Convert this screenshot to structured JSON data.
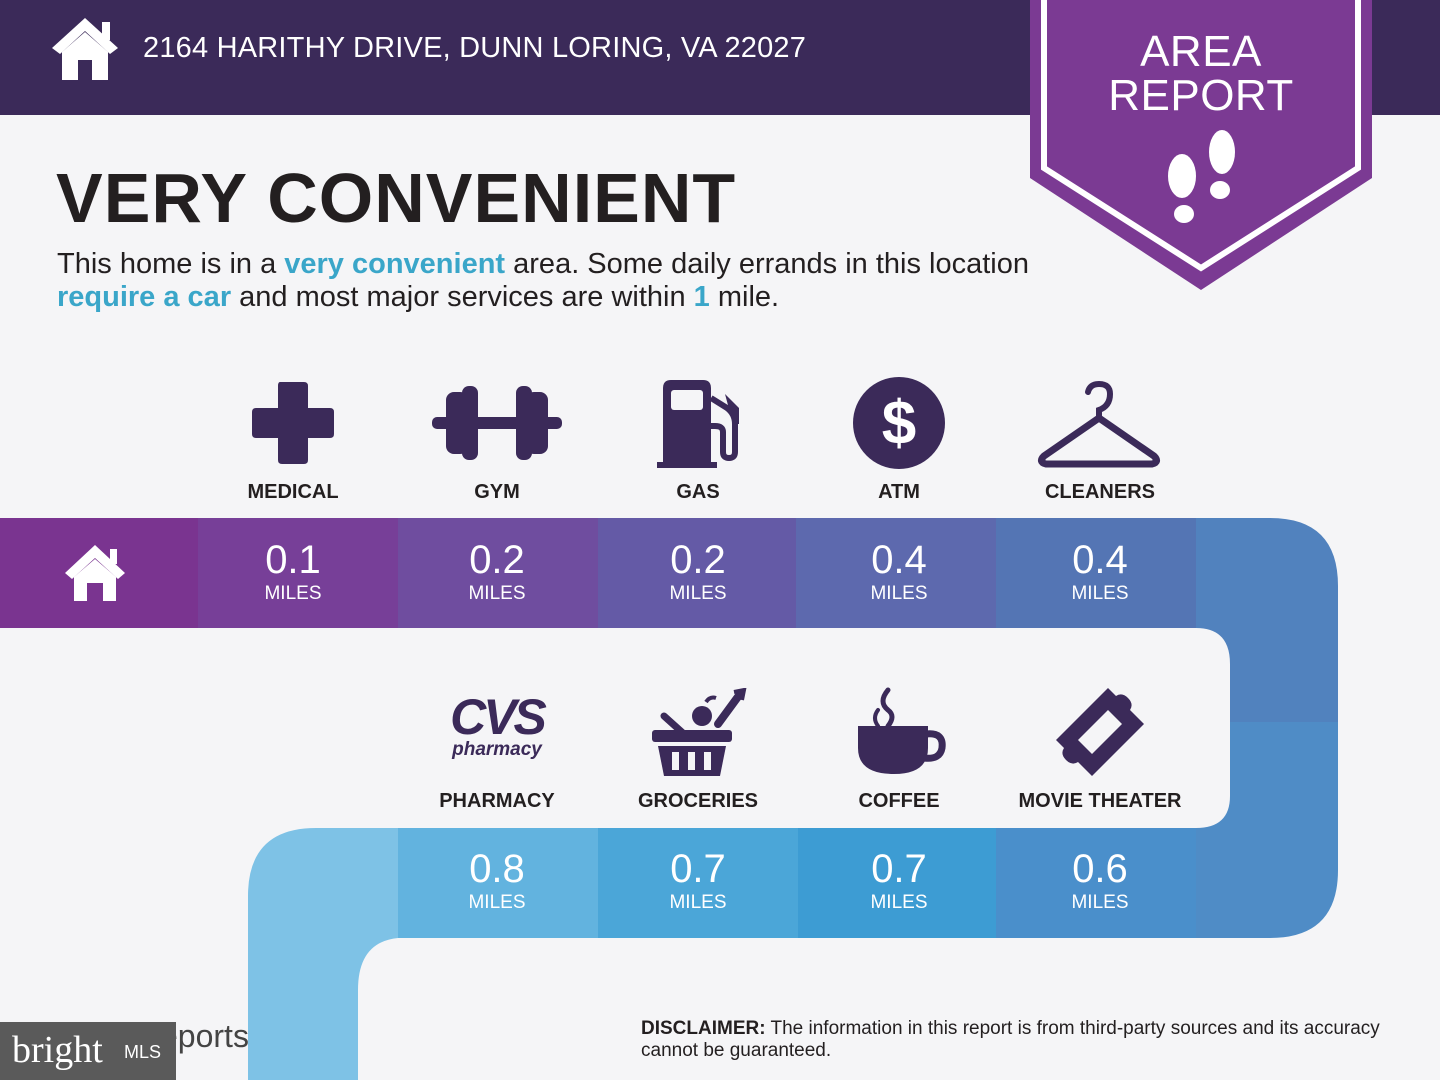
{
  "header": {
    "address": "2164 HARITHY DRIVE, DUNN LORING, VA 22027"
  },
  "badge": {
    "line1": "AREA",
    "line2": "REPORT"
  },
  "headline": "VERY CONVENIENT",
  "summary": {
    "p1": "This home is in a ",
    "h1": "very convenient",
    "p2": " area. Some daily errands in this location ",
    "h2": "require a car",
    "p3": " and most major services are within ",
    "h3": "1",
    "p4": " mile."
  },
  "top_row": [
    {
      "label": "MEDICAL",
      "distance": "0.1",
      "unit": "MILES",
      "icon": "medical-cross-icon"
    },
    {
      "label": "GYM",
      "distance": "0.2",
      "unit": "MILES",
      "icon": "dumbbell-icon"
    },
    {
      "label": "GAS",
      "distance": "0.2",
      "unit": "MILES",
      "icon": "gas-pump-icon"
    },
    {
      "label": "ATM",
      "distance": "0.4",
      "unit": "MILES",
      "icon": "dollar-icon"
    },
    {
      "label": "CLEANERS",
      "distance": "0.4",
      "unit": "MILES",
      "icon": "hanger-icon"
    }
  ],
  "bottom_row": [
    {
      "label": "PHARMACY",
      "distance": "0.8",
      "unit": "MILES",
      "icon": "cvs-pharmacy-logo"
    },
    {
      "label": "GROCERIES",
      "distance": "0.7",
      "unit": "MILES",
      "icon": "grocery-basket-icon"
    },
    {
      "label": "COFFEE",
      "distance": "0.7",
      "unit": "MILES",
      "icon": "coffee-cup-icon"
    },
    {
      "label": "MOVIE THEATER",
      "distance": "0.6",
      "unit": "MILES",
      "icon": "movie-ticket-icon"
    }
  ],
  "cvs_logo": {
    "top": "CVS",
    "bottom": "pharmacy"
  },
  "footer": {
    "logo_partial": "eports",
    "mls_bright": "bright",
    "mls_label": "MLS",
    "disclaimer_label": "DISCLAIMER:",
    "disclaimer_text": " The information in this report is from third-party sources and its accuracy cannot be guaranteed."
  },
  "colors": {
    "header": "#3b2a59",
    "badge": "#7b3a93",
    "icon": "#3b2a59",
    "highlight": "#3aa6c9"
  }
}
